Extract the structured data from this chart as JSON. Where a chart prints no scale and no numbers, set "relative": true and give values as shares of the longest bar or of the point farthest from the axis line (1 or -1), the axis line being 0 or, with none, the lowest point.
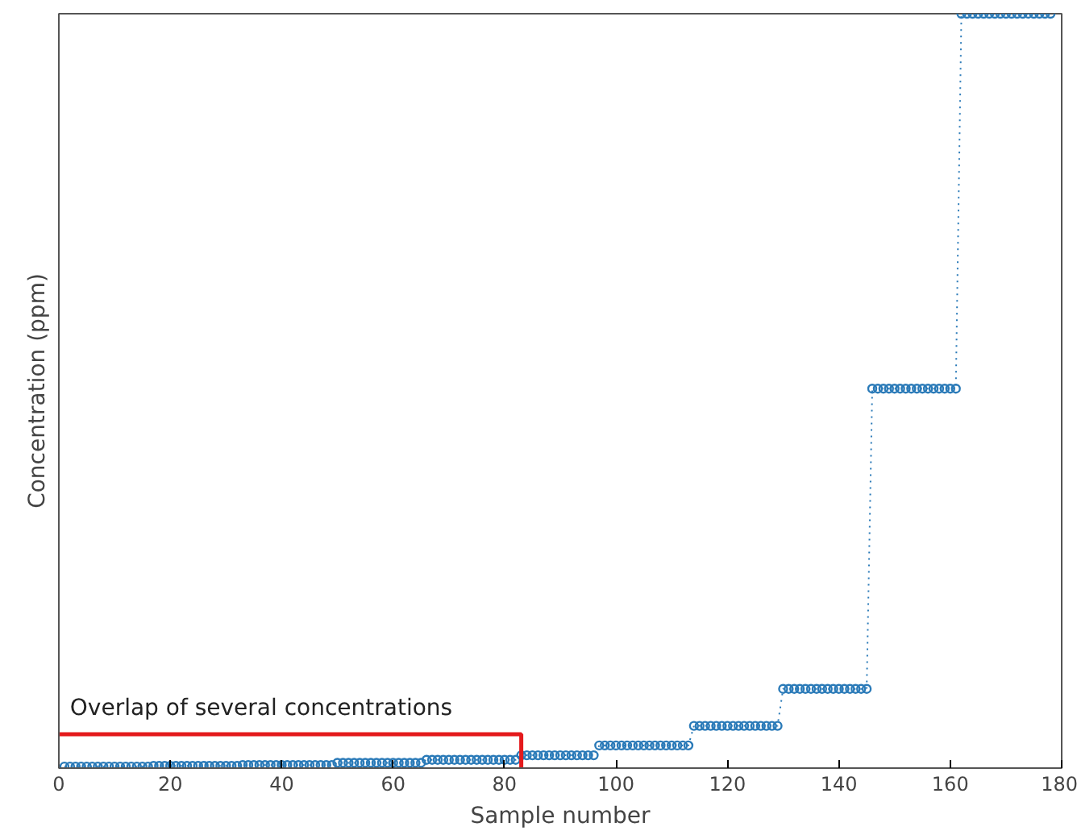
{
  "chart_data": {
    "type": "line",
    "xlabel": "Sample number",
    "ylabel": "Concentration (ppm)",
    "relative": true,
    "marker": "circle",
    "line_style": "dotted",
    "grid": false,
    "xlim": [
      0,
      180
    ],
    "xticks": [
      0,
      20,
      40,
      60,
      80,
      100,
      120,
      140,
      160,
      180
    ],
    "annotations": [
      "Overlap of several concentrations"
    ],
    "x": [
      1,
      2,
      3,
      4,
      5,
      6,
      7,
      8,
      9,
      10,
      11,
      12,
      13,
      14,
      15,
      16,
      17,
      18,
      19,
      20,
      21,
      22,
      23,
      24,
      25,
      26,
      27,
      28,
      29,
      30,
      31,
      32,
      33,
      34,
      35,
      36,
      37,
      38,
      39,
      40,
      41,
      42,
      43,
      44,
      45,
      46,
      47,
      48,
      49,
      50,
      51,
      52,
      53,
      54,
      55,
      56,
      57,
      58,
      59,
      60,
      61,
      62,
      63,
      64,
      65,
      66,
      67,
      68,
      69,
      70,
      71,
      72,
      73,
      74,
      75,
      76,
      77,
      78,
      79,
      80,
      81,
      82,
      83,
      84,
      85,
      86,
      87,
      88,
      89,
      90,
      91,
      92,
      93,
      94,
      95,
      96,
      97,
      98,
      99,
      100,
      101,
      102,
      103,
      104,
      105,
      106,
      107,
      108,
      109,
      110,
      111,
      112,
      113,
      114,
      115,
      116,
      117,
      118,
      119,
      120,
      121,
      122,
      123,
      124,
      125,
      126,
      127,
      128,
      129,
      130,
      131,
      132,
      133,
      134,
      135,
      136,
      137,
      138,
      139,
      140,
      141,
      142,
      143,
      144,
      145,
      146,
      147,
      148,
      149,
      150,
      151,
      152,
      153,
      154,
      155,
      156,
      157,
      158,
      159,
      160,
      161,
      162,
      163,
      164,
      165,
      166,
      167,
      168,
      169,
      170,
      171,
      172,
      173,
      174,
      175,
      176,
      177,
      178
    ],
    "series": [
      {
        "color": "#2a7ab8",
        "values": [
          0.002,
          0.002,
          0.002,
          0.002,
          0.002,
          0.002,
          0.002,
          0.002,
          0.002,
          0.002,
          0.002,
          0.002,
          0.002,
          0.002,
          0.002,
          0.002,
          0.003,
          0.003,
          0.003,
          0.003,
          0.003,
          0.003,
          0.003,
          0.003,
          0.003,
          0.003,
          0.003,
          0.003,
          0.003,
          0.003,
          0.003,
          0.003,
          0.004,
          0.004,
          0.004,
          0.004,
          0.004,
          0.004,
          0.004,
          0.004,
          0.004,
          0.004,
          0.004,
          0.004,
          0.004,
          0.004,
          0.004,
          0.004,
          0.004,
          0.007,
          0.007,
          0.007,
          0.007,
          0.007,
          0.007,
          0.007,
          0.007,
          0.007,
          0.007,
          0.007,
          0.007,
          0.007,
          0.007,
          0.007,
          0.007,
          0.011,
          0.011,
          0.011,
          0.011,
          0.011,
          0.011,
          0.011,
          0.011,
          0.011,
          0.011,
          0.011,
          0.011,
          0.011,
          0.011,
          0.011,
          0.011,
          0.011,
          0.017,
          0.017,
          0.017,
          0.017,
          0.017,
          0.017,
          0.017,
          0.017,
          0.017,
          0.017,
          0.017,
          0.017,
          0.017,
          0.017,
          0.03,
          0.03,
          0.03,
          0.03,
          0.03,
          0.03,
          0.03,
          0.03,
          0.03,
          0.03,
          0.03,
          0.03,
          0.03,
          0.03,
          0.03,
          0.03,
          0.03,
          0.056,
          0.056,
          0.056,
          0.056,
          0.056,
          0.056,
          0.056,
          0.056,
          0.056,
          0.056,
          0.056,
          0.056,
          0.056,
          0.056,
          0.056,
          0.056,
          0.105,
          0.105,
          0.105,
          0.105,
          0.105,
          0.105,
          0.105,
          0.105,
          0.105,
          0.105,
          0.105,
          0.105,
          0.105,
          0.105,
          0.105,
          0.105,
          0.503,
          0.503,
          0.503,
          0.503,
          0.503,
          0.503,
          0.503,
          0.503,
          0.503,
          0.503,
          0.503,
          0.503,
          0.503,
          0.503,
          0.503,
          0.503,
          1,
          1,
          1,
          1,
          1,
          1,
          1,
          1,
          1,
          1,
          1,
          1,
          1,
          1,
          1,
          1,
          1
        ]
      }
    ]
  }
}
